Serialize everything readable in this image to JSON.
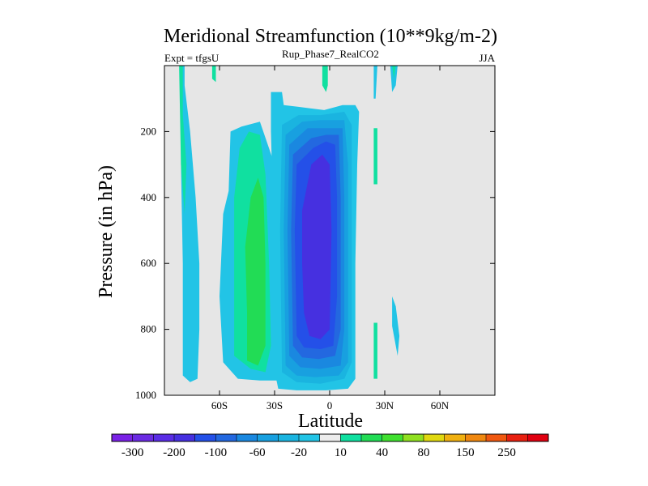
{
  "chart_data": {
    "type": "contour",
    "title": "Meridional Streamfunction (10**9kg/m-2)",
    "left_label": "Expt = tfgsU",
    "center_label": "Rup_Phase7_RealCO2",
    "right_label": "JJA",
    "xlabel": "Latitude",
    "ylabel": "Pressure (in hPa)",
    "xlim": [
      -90,
      90
    ],
    "ylim": [
      1000,
      0
    ],
    "x_ticks": [
      {
        "value": -60,
        "label": "60S"
      },
      {
        "value": -30,
        "label": "30S"
      },
      {
        "value": 0,
        "label": "0"
      },
      {
        "value": 30,
        "label": "30N"
      },
      {
        "value": 60,
        "label": "60N"
      }
    ],
    "y_ticks": [
      {
        "value": 200,
        "label": "200"
      },
      {
        "value": 400,
        "label": "400"
      },
      {
        "value": 600,
        "label": "600"
      },
      {
        "value": 800,
        "label": "800"
      },
      {
        "value": 1000,
        "label": "1000"
      }
    ],
    "colorbar": {
      "levels": [
        -300,
        -250,
        -200,
        -150,
        -100,
        -80,
        -60,
        -40,
        -20,
        -10,
        10,
        20,
        40,
        60,
        80,
        100,
        150,
        200,
        250,
        300
      ],
      "labels": [
        "-300",
        "-200",
        "-100",
        "-60",
        "-20",
        "10",
        "40",
        "80",
        "150",
        "250"
      ],
      "colors": [
        "#7a22e6",
        "#6b2be3",
        "#5a2de6",
        "#4630e0",
        "#2450e8",
        "#2368e0",
        "#1a88e0",
        "#18a0e0",
        "#1ab4e0",
        "#22c4e6",
        "#ececec",
        "#10e0a0",
        "#22dc55",
        "#40e030",
        "#90e020",
        "#e0d810",
        "#f0b010",
        "#f08810",
        "#f05810",
        "#e82010",
        "#e00010"
      ]
    },
    "regions": [
      {
        "level_index": 9,
        "points": [
          [
            -81,
            0
          ],
          [
            -79,
            0
          ],
          [
            -79,
            60
          ],
          [
            -76,
            200
          ],
          [
            -73,
            400
          ],
          [
            -71,
            600
          ],
          [
            -71,
            800
          ],
          [
            -72,
            950
          ],
          [
            -76,
            960
          ],
          [
            -80,
            940
          ],
          [
            -80,
            600
          ],
          [
            -81,
            300
          ]
        ]
      },
      {
        "level_index": 11,
        "points": [
          [
            -82,
            0
          ],
          [
            -80,
            0
          ],
          [
            -80,
            150
          ],
          [
            -78,
            300
          ],
          [
            -79,
            450
          ],
          [
            -81,
            300
          ]
        ]
      },
      {
        "level_index": 11,
        "points": [
          [
            -64,
            0
          ],
          [
            -62,
            0
          ],
          [
            -62,
            50
          ],
          [
            -64,
            40
          ]
        ]
      },
      {
        "level_index": 9,
        "points": [
          [
            -55,
            380
          ],
          [
            -54,
            200
          ],
          [
            -48,
            185
          ],
          [
            -38,
            170
          ],
          [
            -30,
            300
          ],
          [
            -28,
            700
          ],
          [
            -26,
            900
          ],
          [
            -28,
            955
          ],
          [
            -38,
            955
          ],
          [
            -50,
            950
          ],
          [
            -58,
            900
          ],
          [
            -60,
            700
          ],
          [
            -58,
            450
          ]
        ]
      },
      {
        "level_index": 11,
        "points": [
          [
            -49,
            250
          ],
          [
            -44,
            200
          ],
          [
            -38,
            210
          ],
          [
            -35,
            330
          ],
          [
            -33,
            600
          ],
          [
            -32,
            850
          ],
          [
            -35,
            930
          ],
          [
            -43,
            920
          ],
          [
            -52,
            880
          ],
          [
            -52,
            650
          ],
          [
            -52,
            400
          ]
        ]
      },
      {
        "level_index": 12,
        "points": [
          [
            -43,
            400
          ],
          [
            -39,
            340
          ],
          [
            -36,
            400
          ],
          [
            -35,
            600
          ],
          [
            -35,
            850
          ],
          [
            -39,
            910
          ],
          [
            -45,
            895
          ],
          [
            -45,
            750
          ],
          [
            -46,
            550
          ]
        ]
      },
      {
        "level_index": 9,
        "points": [
          [
            -32,
            80
          ],
          [
            -26,
            80
          ],
          [
            -25,
            120
          ],
          [
            -17,
            125
          ],
          [
            -3,
            135
          ],
          [
            7,
            120
          ],
          [
            14,
            120
          ],
          [
            16,
            140
          ],
          [
            15,
            300
          ],
          [
            14,
            600
          ],
          [
            14,
            900
          ],
          [
            14,
            950
          ],
          [
            10,
            980
          ],
          [
            -2,
            985
          ],
          [
            -18,
            985
          ],
          [
            -28,
            980
          ],
          [
            -31,
            900
          ],
          [
            -31,
            400
          ],
          [
            -32,
            200
          ]
        ]
      },
      {
        "level_index": 8,
        "points": [
          [
            -26,
            180
          ],
          [
            -17,
            150
          ],
          [
            -5,
            150
          ],
          [
            8,
            140
          ],
          [
            12,
            180
          ],
          [
            12,
            500
          ],
          [
            12,
            900
          ],
          [
            8,
            950
          ],
          [
            -5,
            965
          ],
          [
            -18,
            960
          ],
          [
            -26,
            930
          ],
          [
            -27,
            500
          ]
        ]
      },
      {
        "level_index": 7,
        "points": [
          [
            -24,
            210
          ],
          [
            -15,
            170
          ],
          [
            -5,
            165
          ],
          [
            8,
            165
          ],
          [
            10,
            300
          ],
          [
            10,
            600
          ],
          [
            10,
            900
          ],
          [
            5,
            940
          ],
          [
            -8,
            945
          ],
          [
            -18,
            940
          ],
          [
            -24,
            910
          ],
          [
            -25,
            500
          ]
        ]
      },
      {
        "level_index": 6,
        "points": [
          [
            -22,
            240
          ],
          [
            -12,
            190
          ],
          [
            -2,
            190
          ],
          [
            7,
            190
          ],
          [
            8,
            400
          ],
          [
            8,
            800
          ],
          [
            6,
            910
          ],
          [
            -5,
            920
          ],
          [
            -16,
            915
          ],
          [
            -22,
            880
          ],
          [
            -23,
            500
          ]
        ]
      },
      {
        "level_index": 5,
        "points": [
          [
            -20,
            270
          ],
          [
            -10,
            220
          ],
          [
            -2,
            210
          ],
          [
            5,
            210
          ],
          [
            6,
            400
          ],
          [
            6,
            800
          ],
          [
            3,
            880
          ],
          [
            -6,
            890
          ],
          [
            -15,
            885
          ],
          [
            -20,
            850
          ],
          [
            -21,
            500
          ]
        ]
      },
      {
        "level_index": 4,
        "points": [
          [
            -18,
            300
          ],
          [
            -9,
            250
          ],
          [
            -2,
            230
          ],
          [
            3,
            240
          ],
          [
            4,
            400
          ],
          [
            4,
            700
          ],
          [
            2,
            850
          ],
          [
            -5,
            860
          ],
          [
            -14,
            855
          ],
          [
            -18,
            820
          ],
          [
            -19,
            500
          ]
        ]
      },
      {
        "level_index": 3,
        "points": [
          [
            -15,
            440
          ],
          [
            -10,
            300
          ],
          [
            -4,
            270
          ],
          [
            0,
            300
          ],
          [
            1,
            500
          ],
          [
            0,
            800
          ],
          [
            -5,
            830
          ],
          [
            -11,
            820
          ],
          [
            -14,
            750
          ],
          [
            -15,
            600
          ]
        ]
      },
      {
        "level_index": 11,
        "points": [
          [
            -4,
            0
          ],
          [
            -1,
            0
          ],
          [
            -1,
            60
          ],
          [
            -2,
            80
          ],
          [
            -4,
            60
          ]
        ]
      },
      {
        "level_index": 11,
        "points": [
          [
            24,
            190
          ],
          [
            26,
            190
          ],
          [
            26,
            360
          ],
          [
            24,
            360
          ]
        ]
      },
      {
        "level_index": 11,
        "points": [
          [
            24,
            780
          ],
          [
            26,
            780
          ],
          [
            26,
            950
          ],
          [
            24,
            950
          ]
        ]
      },
      {
        "level_index": 9,
        "points": [
          [
            24,
            0
          ],
          [
            26,
            0
          ],
          [
            25,
            100
          ],
          [
            24,
            100
          ]
        ]
      },
      {
        "level_index": 9,
        "points": [
          [
            33,
            0
          ],
          [
            37,
            0
          ],
          [
            36,
            60
          ],
          [
            34,
            80
          ]
        ]
      },
      {
        "level_index": 11,
        "points": [
          [
            34,
            0
          ],
          [
            36,
            0
          ],
          [
            35,
            40
          ]
        ]
      },
      {
        "level_index": 9,
        "points": [
          [
            34,
            700
          ],
          [
            36,
            730
          ],
          [
            38,
            820
          ],
          [
            37,
            880
          ],
          [
            34,
            790
          ]
        ]
      }
    ]
  }
}
